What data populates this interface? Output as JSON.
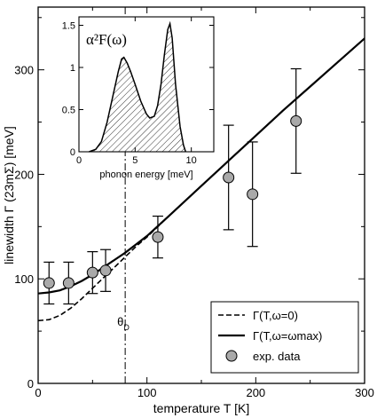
{
  "chart_data": [
    {
      "type": "line",
      "xlabel": "temperature T [K]",
      "ylabel": "linewidth Γ (23mΣ) [meV]",
      "xlim": [
        0,
        300
      ],
      "ylim": [
        0,
        360
      ],
      "xticks": [
        0,
        100,
        200,
        300
      ],
      "yticks": [
        0,
        100,
        200,
        300
      ],
      "grid": false,
      "legend_position": "bottom-right",
      "annotations": [
        {
          "text": "θD",
          "x": 80
        }
      ],
      "series": [
        {
          "name": "Γ(T,ω=0)",
          "style": "dashed",
          "x": [
            0,
            10,
            20,
            30,
            40,
            50,
            60,
            70,
            80,
            90,
            100,
            120,
            150,
            175,
            200,
            225,
            250,
            275,
            300
          ],
          "y": [
            60,
            61,
            65,
            72,
            81,
            91,
            101,
            111,
            121,
            131,
            140,
            160,
            189,
            213,
            237,
            261,
            284,
            307,
            330
          ]
        },
        {
          "name": "Γ(T,ω=ωmax)",
          "style": "solid",
          "x": [
            0,
            10,
            20,
            30,
            40,
            50,
            60,
            70,
            80,
            90,
            100,
            120,
            150,
            175,
            200,
            225,
            250,
            275,
            300
          ],
          "y": [
            86,
            87,
            89,
            93,
            98,
            104,
            111,
            118,
            125,
            133,
            141,
            160,
            189,
            213,
            237,
            261,
            284,
            307,
            330
          ]
        },
        {
          "name": "exp. data",
          "style": "markers",
          "x": [
            10,
            28,
            50,
            62,
            110,
            175,
            197,
            237
          ],
          "y": [
            96,
            96,
            106,
            108,
            140,
            197,
            181,
            251
          ],
          "yerr": [
            20,
            20,
            20,
            20,
            20,
            50,
            50,
            50
          ]
        }
      ]
    },
    {
      "type": "area",
      "title": "α²F(ω)",
      "xlabel": "phonon energy [meV]",
      "xlim": [
        0,
        12
      ],
      "ylim": [
        0,
        1.6
      ],
      "xticks": [
        0,
        5,
        10
      ],
      "yticks": [
        0,
        0.5,
        1,
        1.5
      ],
      "grid": false,
      "series": [
        {
          "x": [
            0.9,
            1.5,
            2.0,
            2.5,
            3.0,
            3.5,
            3.8,
            4.0,
            4.3,
            4.6,
            5.0,
            5.5,
            6.0,
            6.3,
            6.7,
            7.0,
            7.3,
            7.6,
            7.9,
            8.1,
            8.3,
            8.6,
            9.0,
            9.3,
            9.5
          ],
          "y": [
            0,
            0.03,
            0.12,
            0.35,
            0.65,
            0.95,
            1.1,
            1.12,
            1.05,
            0.95,
            0.8,
            0.6,
            0.45,
            0.4,
            0.42,
            0.55,
            0.8,
            1.15,
            1.45,
            1.52,
            1.35,
            0.8,
            0.3,
            0.08,
            0
          ]
        }
      ]
    }
  ]
}
